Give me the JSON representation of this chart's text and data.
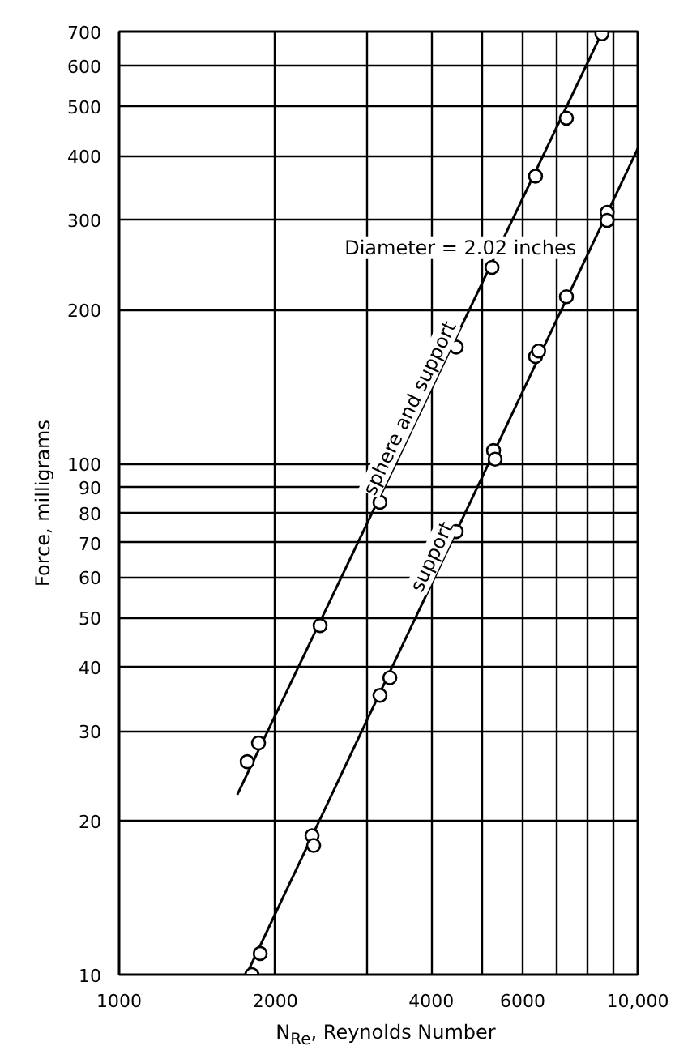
{
  "chart_data": {
    "type": "scatter",
    "xlabel": "N$_{Re}$, Reynolds Number",
    "ylabel": "Force, milligrams",
    "annotations": [
      "Diameter = 2.02 inches"
    ],
    "log": "xy",
    "grid": true,
    "marker": "circle",
    "xlim": [
      1000,
      10000
    ],
    "ylim": [
      10,
      700
    ],
    "xticks": [
      {
        "value": 1000,
        "label": "1000"
      },
      {
        "value": 2000,
        "label": "2000"
      },
      {
        "value": 3000,
        "label": null
      },
      {
        "value": 4000,
        "label": "4000"
      },
      {
        "value": 5000,
        "label": null
      },
      {
        "value": 6000,
        "label": "6000"
      },
      {
        "value": 7000,
        "label": null
      },
      {
        "value": 8000,
        "label": null
      },
      {
        "value": 9000,
        "label": null
      },
      {
        "value": 10000,
        "label": "10,000"
      }
    ],
    "yticks": [
      10,
      20,
      30,
      40,
      50,
      60,
      70,
      80,
      90,
      100,
      200,
      300,
      400,
      500,
      600,
      700
    ],
    "series": [
      {
        "color": "#000000",
        "x": [
          1766,
          1857,
          2441,
          3184,
          4467,
          5236,
          6353,
          7286,
          8531
        ],
        "values": [
          26.1,
          28.4,
          48.2,
          84,
          169,
          242,
          365,
          474,
          693
        ]
      },
      {
        "color": "#000000",
        "x": [
          1803,
          1871,
          2355,
          2372,
          3184,
          3327,
          4467,
          5272,
          5309,
          6353,
          6440,
          7286,
          8730,
          8730
        ],
        "values": [
          10,
          11.0,
          18.7,
          17.9,
          35.2,
          38.1,
          73.6,
          106,
          102,
          162,
          166,
          212,
          310,
          299
        ]
      },
      {
        "type": "line",
        "name": "sphere and support",
        "color": "#000000",
        "marker": "none",
        "x": [
          1690,
          8550
        ],
        "values": [
          22.5,
          700
        ]
      },
      {
        "type": "line",
        "name": "support",
        "color": "#000000",
        "marker": "none",
        "x": [
          1760,
          10000
        ],
        "values": [
          10,
          413
        ]
      }
    ]
  }
}
